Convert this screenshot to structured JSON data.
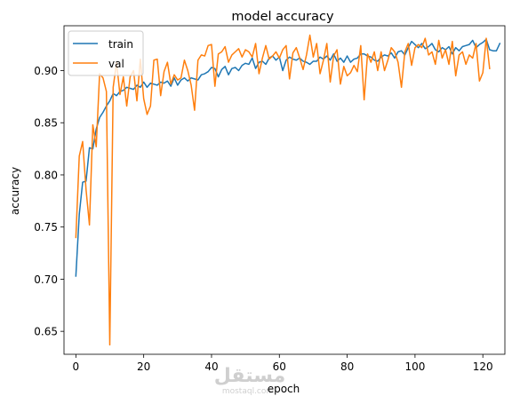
{
  "chart_data": {
    "type": "line",
    "title": "model accuracy",
    "xlabel": "epoch",
    "ylabel": "accuracy",
    "xlim": [
      -3.5,
      126.5
    ],
    "ylim": [
      0.628,
      0.943
    ],
    "xticks": [
      0,
      20,
      40,
      60,
      80,
      100,
      120
    ],
    "yticks": [
      0.65,
      0.7,
      0.75,
      0.8,
      0.85,
      0.9
    ],
    "ytick_labels": [
      "0.65",
      "0.70",
      "0.75",
      "0.80",
      "0.85",
      "0.90"
    ],
    "grid": false,
    "legend_position": "upper-left",
    "series": [
      {
        "name": "train",
        "color": "#1f77b4",
        "values": [
          0.703,
          0.762,
          0.793,
          0.794,
          0.826,
          0.825,
          0.844,
          0.855,
          0.86,
          0.866,
          0.871,
          0.878,
          0.876,
          0.88,
          0.881,
          0.884,
          0.883,
          0.882,
          0.886,
          0.884,
          0.889,
          0.884,
          0.888,
          0.887,
          0.886,
          0.889,
          0.888,
          0.89,
          0.885,
          0.893,
          0.886,
          0.891,
          0.893,
          0.89,
          0.893,
          0.892,
          0.891,
          0.896,
          0.897,
          0.899,
          0.903,
          0.902,
          0.894,
          0.901,
          0.904,
          0.896,
          0.902,
          0.903,
          0.9,
          0.905,
          0.907,
          0.906,
          0.912,
          0.902,
          0.908,
          0.909,
          0.906,
          0.912,
          0.914,
          0.91,
          0.913,
          0.9,
          0.91,
          0.913,
          0.911,
          0.91,
          0.912,
          0.909,
          0.908,
          0.906,
          0.909,
          0.909,
          0.913,
          0.911,
          0.914,
          0.91,
          0.916,
          0.909,
          0.912,
          0.908,
          0.914,
          0.908,
          0.911,
          0.912,
          0.916,
          0.916,
          0.914,
          0.913,
          0.91,
          0.909,
          0.913,
          0.915,
          0.914,
          0.917,
          0.912,
          0.918,
          0.919,
          0.915,
          0.922,
          0.928,
          0.925,
          0.922,
          0.926,
          0.921,
          0.923,
          0.926,
          0.92,
          0.918,
          0.922,
          0.92,
          0.923,
          0.916,
          0.922,
          0.919,
          0.923,
          0.924,
          0.925,
          0.929,
          0.922,
          0.925,
          0.927,
          0.93,
          0.92,
          0.919,
          0.919,
          0.926
        ]
      },
      {
        "name": "val",
        "color": "#ff7f0e",
        "values": [
          0.74,
          0.818,
          0.832,
          0.786,
          0.752,
          0.848,
          0.827,
          0.897,
          0.893,
          0.88,
          0.637,
          0.884,
          0.908,
          0.877,
          0.894,
          0.866,
          0.894,
          0.9,
          0.871,
          0.911,
          0.873,
          0.858,
          0.866,
          0.91,
          0.911,
          0.876,
          0.899,
          0.908,
          0.887,
          0.896,
          0.891,
          0.893,
          0.91,
          0.9,
          0.886,
          0.862,
          0.91,
          0.915,
          0.914,
          0.924,
          0.925,
          0.885,
          0.916,
          0.918,
          0.923,
          0.908,
          0.915,
          0.918,
          0.921,
          0.913,
          0.92,
          0.918,
          0.913,
          0.926,
          0.897,
          0.912,
          0.924,
          0.911,
          0.914,
          0.918,
          0.912,
          0.92,
          0.924,
          0.892,
          0.917,
          0.922,
          0.912,
          0.901,
          0.915,
          0.934,
          0.913,
          0.926,
          0.897,
          0.91,
          0.926,
          0.889,
          0.914,
          0.92,
          0.887,
          0.904,
          0.895,
          0.898,
          0.905,
          0.899,
          0.924,
          0.872,
          0.916,
          0.908,
          0.918,
          0.9,
          0.918,
          0.9,
          0.91,
          0.922,
          0.918,
          0.908,
          0.884,
          0.918,
          0.926,
          0.905,
          0.922,
          0.925,
          0.922,
          0.931,
          0.915,
          0.918,
          0.906,
          0.929,
          0.912,
          0.92,
          0.906,
          0.928,
          0.895,
          0.915,
          0.918,
          0.906,
          0.915,
          0.912,
          0.926,
          0.89,
          0.898,
          0.931,
          0.902
        ]
      }
    ]
  },
  "watermark": {
    "arabic": "مستقل",
    "latin": "mostaql.com"
  }
}
